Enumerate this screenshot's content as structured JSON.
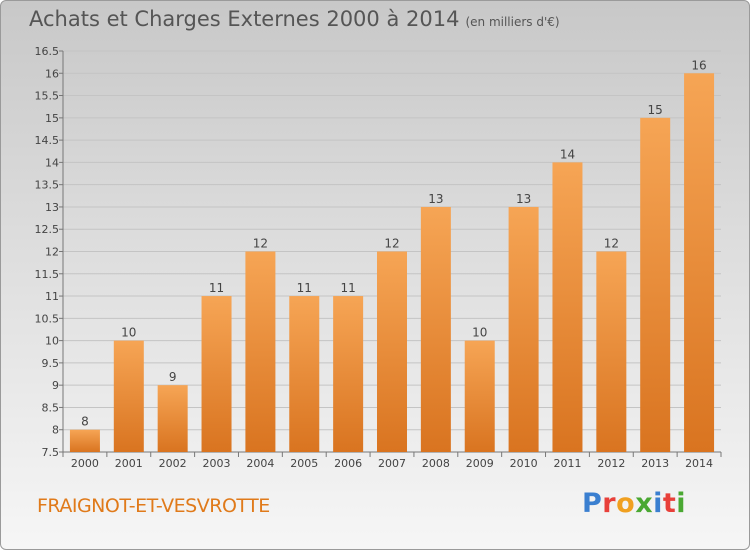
{
  "header": {
    "title": "Achats et Charges Externes 2000 à 2014",
    "subtitle": "(en milliers d'€)"
  },
  "footer": {
    "commune": "FRAIGNOT-ET-VESVROTTE",
    "logo_letters": [
      "P",
      "r",
      "o",
      "x",
      "i",
      "t",
      "i"
    ]
  },
  "colors": {
    "bar_top": "#f6a555",
    "bar_bottom": "#d97420",
    "commune_text": "#e07a1a",
    "logo": [
      "#3a7fd0",
      "#e8403a",
      "#f0a020",
      "#4aa832",
      "#3a7fd0",
      "#e8403a",
      "#4aa832"
    ]
  },
  "chart_data": {
    "type": "bar",
    "title": "Achats et Charges Externes 2000 à 2014",
    "subtitle": "(en milliers d'€)",
    "categories": [
      "2000",
      "2001",
      "2002",
      "2003",
      "2004",
      "2005",
      "2006",
      "2007",
      "2008",
      "2009",
      "2010",
      "2011",
      "2012",
      "2013",
      "2014"
    ],
    "values": [
      8,
      10,
      9,
      11,
      12,
      11,
      11,
      12,
      13,
      10,
      13,
      14,
      12,
      15,
      16
    ],
    "ylim": [
      7.5,
      16.5
    ],
    "yticks": [
      "7.5",
      "8",
      "8.5",
      "9",
      "9.5",
      "10",
      "10.5",
      "11",
      "11.5",
      "12",
      "12.5",
      "13",
      "13.5",
      "14",
      "14.5",
      "15",
      "15.5",
      "16",
      "16.5"
    ],
    "grid": true
  }
}
